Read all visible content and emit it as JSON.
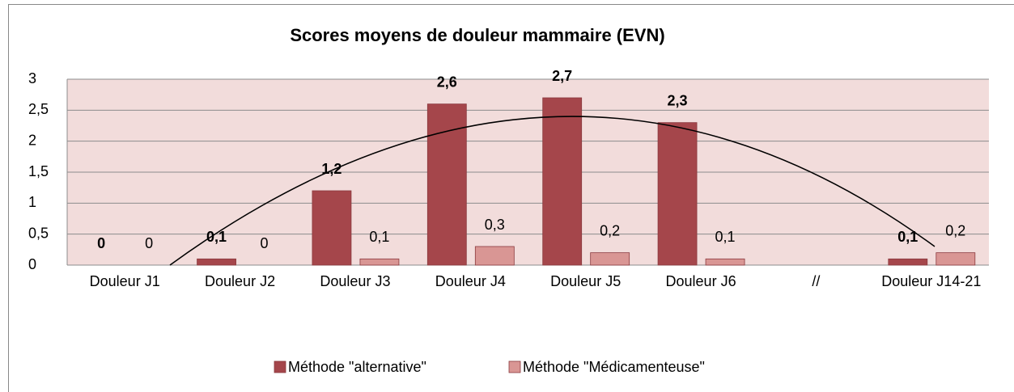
{
  "chart_data": {
    "type": "bar",
    "title": "Scores moyens de douleur mammaire (EVN)",
    "categories": [
      "Douleur J1",
      "Douleur J2",
      "Douleur J3",
      "Douleur J4",
      "Douleur J5",
      "Douleur J6",
      "//",
      "Douleur J14-21"
    ],
    "series": [
      {
        "name": "Méthode \"alternative\"",
        "color": "#a5464b",
        "values": [
          0,
          0.1,
          1.2,
          2.6,
          2.7,
          2.3,
          null,
          0.1
        ],
        "value_labels": [
          "0",
          "0,1",
          "1,2",
          "2,6",
          "2,7",
          "2,3",
          null,
          "0,1"
        ]
      },
      {
        "name": "Méthode \"Médicamenteuse\"",
        "color": "#d99694",
        "values": [
          0,
          0,
          0.1,
          0.3,
          0.2,
          0.1,
          null,
          0.2
        ],
        "value_labels": [
          "0",
          "0",
          "0,1",
          "0,3",
          "0,2",
          "0,1",
          null,
          "0,2"
        ]
      }
    ],
    "ylim": [
      0,
      3
    ],
    "yticks": [
      0,
      {
        "value": 0.5,
        "label": "0,5"
      },
      1,
      {
        "value": 1.5,
        "label": "1,5"
      },
      2,
      {
        "value": 2.5,
        "label": "2,5"
      },
      3
    ],
    "grid": true,
    "legend": "bottom"
  }
}
